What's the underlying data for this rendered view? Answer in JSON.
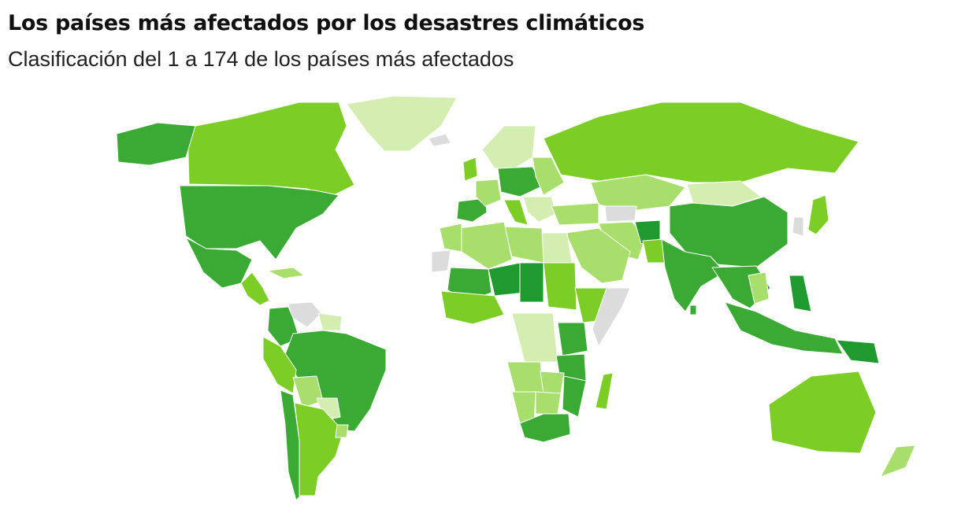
{
  "header": {
    "title": "Los países más afectados por los desastres climáticos",
    "subtitle": "Clasificación del 1 a 174 de los países más afectados"
  },
  "map": {
    "type": "choropleth",
    "scale_colors": {
      "no_data": "#dcdcdc",
      "very_light": "#d3eeb0",
      "light": "#a8de6c",
      "medium": "#7cce27",
      "dark": "#3aaa35",
      "darkest": "#1f9a2e"
    },
    "regions": [
      {
        "name": "Groenlandia",
        "level": "very_light"
      },
      {
        "name": "Canadá",
        "level": "medium"
      },
      {
        "name": "Alaska",
        "level": "dark"
      },
      {
        "name": "Estados Unidos",
        "level": "dark"
      },
      {
        "name": "México",
        "level": "dark"
      },
      {
        "name": "Centroamérica",
        "level": "medium"
      },
      {
        "name": "Cuba",
        "level": "light"
      },
      {
        "name": "Venezuela",
        "level": "no_data"
      },
      {
        "name": "Guayanas",
        "level": "very_light"
      },
      {
        "name": "Colombia",
        "level": "dark"
      },
      {
        "name": "Brasil",
        "level": "dark"
      },
      {
        "name": "Perú",
        "level": "medium"
      },
      {
        "name": "Bolivia",
        "level": "light"
      },
      {
        "name": "Paraguay",
        "level": "very_light"
      },
      {
        "name": "Chile",
        "level": "dark"
      },
      {
        "name": "Argentina",
        "level": "medium"
      },
      {
        "name": "Uruguay",
        "level": "light"
      },
      {
        "name": "Islandia",
        "level": "no_data"
      },
      {
        "name": "Escandinavia",
        "level": "very_light"
      },
      {
        "name": "Reino Unido",
        "level": "medium"
      },
      {
        "name": "España",
        "level": "dark"
      },
      {
        "name": "Francia",
        "level": "light"
      },
      {
        "name": "Europa Central",
        "level": "dark"
      },
      {
        "name": "Europa del Este",
        "level": "light"
      },
      {
        "name": "Italia",
        "level": "medium"
      },
      {
        "name": "Balcanes",
        "level": "very_light"
      },
      {
        "name": "Rusia",
        "level": "medium"
      },
      {
        "name": "Kazajistán",
        "level": "light"
      },
      {
        "name": "Mongolia",
        "level": "very_light"
      },
      {
        "name": "China",
        "level": "dark"
      },
      {
        "name": "Corea",
        "level": "no_data"
      },
      {
        "name": "Japón",
        "level": "medium"
      },
      {
        "name": "Turquía",
        "level": "light"
      },
      {
        "name": "Cáucaso",
        "level": "no_data"
      },
      {
        "name": "Irán",
        "level": "light"
      },
      {
        "name": "Afganistán",
        "level": "darkest"
      },
      {
        "name": "Pakistán",
        "level": "medium"
      },
      {
        "name": "India",
        "level": "dark"
      },
      {
        "name": "Sudeste Asiático",
        "level": "dark"
      },
      {
        "name": "Vietnam",
        "level": "light"
      },
      {
        "name": "Filipinas",
        "level": "darkest"
      },
      {
        "name": "Indonesia",
        "level": "dark"
      },
      {
        "name": "Papúa Nueva Guinea",
        "level": "darkest"
      },
      {
        "name": "Península Arábiga",
        "level": "light"
      },
      {
        "name": "Egipto",
        "level": "very_light"
      },
      {
        "name": "Libia",
        "level": "light"
      },
      {
        "name": "Argelia",
        "level": "light"
      },
      {
        "name": "Marruecos",
        "level": "light"
      },
      {
        "name": "Sáhara Occidental",
        "level": "no_data"
      },
      {
        "name": "Mali",
        "level": "dark"
      },
      {
        "name": "Níger",
        "level": "darkest"
      },
      {
        "name": "Chad",
        "level": "darkest"
      },
      {
        "name": "Sudán",
        "level": "medium"
      },
      {
        "name": "Etiopía",
        "level": "medium"
      },
      {
        "name": "Somalia",
        "level": "no_data"
      },
      {
        "name": "África Occidental",
        "level": "medium"
      },
      {
        "name": "RD del Congo",
        "level": "very_light"
      },
      {
        "name": "Kenia",
        "level": "dark"
      },
      {
        "name": "Tanzania",
        "level": "dark"
      },
      {
        "name": "Angola",
        "level": "light"
      },
      {
        "name": "Zambia",
        "level": "light"
      },
      {
        "name": "Mozambique",
        "level": "dark"
      },
      {
        "name": "Madagascar",
        "level": "medium"
      },
      {
        "name": "Namibia",
        "level": "light"
      },
      {
        "name": "Botsuana",
        "level": "light"
      },
      {
        "name": "Sudáfrica",
        "level": "dark"
      },
      {
        "name": "Australia",
        "level": "medium"
      },
      {
        "name": "Nueva Zelanda",
        "level": "light"
      },
      {
        "name": "Sri Lanka",
        "level": "dark"
      }
    ]
  }
}
